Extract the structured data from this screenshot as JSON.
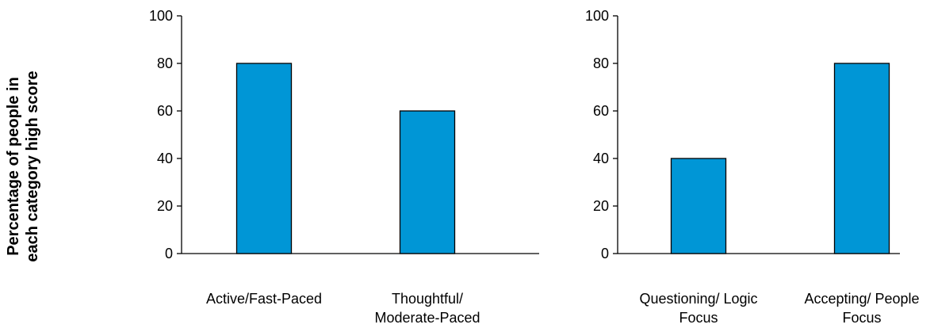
{
  "ylabel_lines": [
    "Percentage of people in",
    "each category high score"
  ],
  "chart_data": [
    {
      "type": "bar",
      "categories": [
        [
          "Active/Fast-Paced"
        ],
        [
          "Thoughtful/",
          "Moderate-Paced"
        ]
      ],
      "values": [
        80,
        60
      ],
      "ylabel": "Percentage of people in each category high score",
      "ylim": [
        0,
        100
      ],
      "yticks": [
        0,
        20,
        40,
        60,
        80,
        100
      ],
      "grid": false,
      "bar_color": "#0096D6",
      "bar_edge": "#000000"
    },
    {
      "type": "bar",
      "categories": [
        [
          "Questioning/ Logic",
          "Focus"
        ],
        [
          "Accepting/ People",
          "Focus"
        ]
      ],
      "values": [
        40,
        80
      ],
      "ylim": [
        0,
        100
      ],
      "yticks": [
        0,
        20,
        40,
        60,
        80,
        100
      ],
      "grid": false,
      "bar_color": "#0096D6",
      "bar_edge": "#000000"
    }
  ]
}
